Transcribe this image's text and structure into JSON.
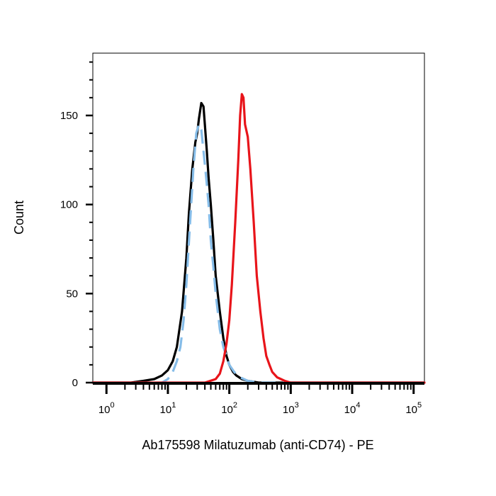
{
  "chart_data": {
    "type": "line",
    "title": "",
    "xlabel": "Ab175598 Milatuzumab (anti-CD74) - PE",
    "ylabel": "Count",
    "x_scale": "log",
    "xlim": [
      0.6,
      150000
    ],
    "ylim": [
      0,
      185
    ],
    "y_ticks": [
      0,
      50,
      100,
      150
    ],
    "y_tick_labels": [
      "0",
      "50",
      "100",
      "150"
    ],
    "x_ticks": [
      1,
      10,
      100,
      1000,
      10000,
      100000
    ],
    "x_tick_labels": [
      {
        "base": "10",
        "exp": "0"
      },
      {
        "base": "10",
        "exp": "1"
      },
      {
        "base": "10",
        "exp": "2"
      },
      {
        "base": "10",
        "exp": "3"
      },
      {
        "base": "10",
        "exp": "4"
      },
      {
        "base": "10",
        "exp": "5"
      }
    ],
    "grid": false,
    "legend": "none",
    "series": [
      {
        "color": "#000000",
        "style": "solid",
        "x": [
          0.6,
          2.5,
          4,
          6,
          8,
          10,
          12,
          14,
          17,
          20,
          22,
          25,
          28,
          30,
          32,
          35,
          38,
          40,
          43,
          46,
          50,
          55,
          60,
          70,
          80,
          90,
          100,
          115,
          130,
          160,
          200,
          300,
          500,
          1000,
          150000
        ],
        "y": [
          0,
          0,
          1,
          2,
          4,
          7,
          12,
          20,
          40,
          70,
          95,
          120,
          135,
          140,
          148,
          157,
          155,
          145,
          130,
          115,
          100,
          80,
          60,
          40,
          25,
          15,
          10,
          6,
          4,
          2,
          1,
          0,
          0,
          0,
          0
        ]
      },
      {
        "color": "#85bce8",
        "style": "dashed",
        "x": [
          0.6,
          8,
          10,
          12,
          14,
          16,
          18,
          20,
          23,
          26,
          29,
          32,
          35,
          38,
          42,
          46,
          50,
          55,
          60,
          70,
          80,
          90,
          100,
          120,
          150,
          200,
          300,
          1000,
          150000
        ],
        "y": [
          0,
          0,
          2,
          6,
          12,
          20,
          35,
          55,
          90,
          120,
          140,
          145,
          142,
          130,
          115,
          100,
          80,
          65,
          50,
          30,
          20,
          15,
          10,
          6,
          3,
          1,
          0,
          0,
          0
        ]
      },
      {
        "color": "#e8141a",
        "style": "solid",
        "x": [
          0.6,
          20,
          40,
          60,
          70,
          80,
          90,
          100,
          110,
          125,
          140,
          150,
          160,
          170,
          180,
          200,
          220,
          250,
          280,
          320,
          360,
          400,
          450,
          500,
          600,
          800,
          1000,
          1500,
          150000
        ],
        "y": [
          0,
          0,
          0,
          2,
          5,
          12,
          22,
          35,
          55,
          90,
          125,
          150,
          162,
          160,
          145,
          138,
          120,
          90,
          60,
          40,
          25,
          15,
          10,
          6,
          3,
          1,
          0,
          0,
          0
        ]
      }
    ]
  }
}
